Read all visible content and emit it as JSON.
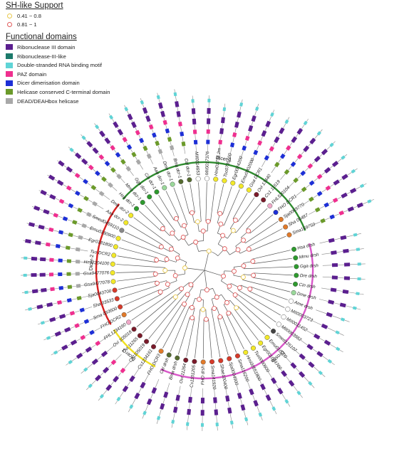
{
  "legend": {
    "support_title": "SH-like Support",
    "support": [
      {
        "label": "0.41 ~ 0.8",
        "color": "#e8c84a"
      },
      {
        "label": "0.81 ~ 1",
        "color": "#e05a5a"
      }
    ],
    "domains_title": "Functional domains",
    "domains": [
      {
        "label": "Ribonuclease III domain",
        "color": "#5b1f8f",
        "key": "R3"
      },
      {
        "label": "Ribonuclease-III-like",
        "color": "#1c7a6b",
        "key": "R3L"
      },
      {
        "label": "Double-stranded RNA binding motif",
        "color": "#5fd4d6",
        "key": "DS"
      },
      {
        "label": "PAZ domain",
        "color": "#ef2f8f",
        "key": "PAZ"
      },
      {
        "label": "Dicer dimerisation domain",
        "color": "#1d2fd6",
        "key": "DD"
      },
      {
        "label": "Helicase conserved C-terminal domain",
        "color": "#6b9a2a",
        "key": "HC"
      },
      {
        "label": "DEAD/DEAHbox helicase",
        "color": "#a8a8a8",
        "key": "DEAD"
      }
    ]
  },
  "clades": [
    {
      "label": "Dicer-1",
      "color": "#2e8b2e"
    },
    {
      "label": "Dicer-2",
      "color": "#d62020"
    },
    {
      "label": "Dicer-3",
      "color": "#f0e020"
    },
    {
      "label": "Drosha",
      "color": "#d857c8"
    }
  ],
  "leaves": [
    {
      "name": "Hsa drsh",
      "color": "#2e9a2e",
      "arch": "DS R3 R3"
    },
    {
      "name": "Mmu drsh",
      "color": "#2e9a2e",
      "arch": "DS R3 R3"
    },
    {
      "name": "Gga drsh",
      "color": "#2e9a2e",
      "arch": "DS R3 R3"
    },
    {
      "name": "Dre drsh",
      "color": "#2e9a2e",
      "arch": "DS R3 R3"
    },
    {
      "name": "Cin drsh",
      "color": "#2e9a2e",
      "arch": "DS R3 R3"
    },
    {
      "name": "Dme drsh",
      "color": "#9ad89a",
      "arch": "DS R3 R3"
    },
    {
      "name": "Ame drsh",
      "color": "#ffffff",
      "arch": "DS R3"
    },
    {
      "name": "MII0003723",
      "color": "#ffffff",
      "arch": "DS R3"
    },
    {
      "name": "MII0011452",
      "color": "#ffffff",
      "arch": "DS R3 R3"
    },
    {
      "name": "MII0003982",
      "color": "#ffffff",
      "arch": "DS R3 R3"
    },
    {
      "name": "Smed125107",
      "color": "#444444",
      "arch": "DS R3 R3"
    },
    {
      "name": "Emu010700",
      "color": "#f2e82a",
      "arch": "DS R3 R3"
    },
    {
      "name": "Egr001084700",
      "color": "#f2e82a",
      "arch": "DS R3 R3"
    },
    {
      "name": "Tso0000600",
      "color": "#f2e82a",
      "arch": "DS R3 R3"
    },
    {
      "name": "Hmi00551800",
      "color": "#f2e82a",
      "arch": "DS R3 R3"
    },
    {
      "name": "Sma116200",
      "color": "#d63a2a",
      "arch": "DS R3 R3"
    },
    {
      "name": "Sja0004900",
      "color": "#d63a2a",
      "arch": "DS R3 R3"
    },
    {
      "name": "Shae100400",
      "color": "#d63a2a",
      "arch": "DS R3 R3"
    },
    {
      "name": "Sma141920",
      "color": "#d63a2a",
      "arch": "DS R3 R3"
    },
    {
      "name": "FHO drsh",
      "color": "#e07a2a",
      "arch": "DS R3 R3"
    },
    {
      "name": "Cs1101205",
      "color": "#7a1a2a",
      "arch": "DS R3 R3"
    },
    {
      "name": "Ovi 11264",
      "color": "#7a1a2a",
      "arch": "DS R3 R3"
    },
    {
      "name": "Bma drsh",
      "color": "#556b2f",
      "arch": "DS R3 R3"
    },
    {
      "name": "Cel drsh",
      "color": "#556b2f",
      "arch": "DS R3 R3"
    },
    {
      "name": "FHO DCR3",
      "color": "#e07a2a",
      "arch": "DS R3 R3"
    },
    {
      "name": "Cs1234161",
      "color": "#7a1a2a",
      "arch": "DS R3 R3"
    },
    {
      "name": "Cs1105019",
      "color": "#7a1a2a",
      "arch": "DS R3 R3 PAZ"
    },
    {
      "name": "Ovi 11265",
      "color": "#7a1a2a",
      "arch": "DS R3 R3 PAZ"
    },
    {
      "name": "Ovi 105018",
      "color": "#7a1a2a",
      "arch": "DS R3 R3"
    },
    {
      "name": "FHL1234160",
      "color": "#f0a8c8",
      "arch": "DS R3 R3 PAZ"
    },
    {
      "name": "FHO DCR2",
      "color": "#e07a2a",
      "arch": "DS R3 R3 PAZ DD"
    },
    {
      "name": "Sma 033600",
      "color": "#d63a2a",
      "arch": "DS R3 R3 PAZ DD"
    },
    {
      "name": "Sha 03533",
      "color": "#d63a2a",
      "arch": "DS R3 R3 PAZ DD"
    },
    {
      "name": "Sja0043700",
      "color": "#d63a2a",
      "arch": "DS R3 R3 PAZ DD HC"
    },
    {
      "name": "Gsa9477078",
      "color": "#f2e82a",
      "arch": "DS R3 R3 PAZ DD HC DEAD"
    },
    {
      "name": "Gsa9477076",
      "color": "#f2e82a",
      "arch": "DS R3 R3 PAZ DD HC DEAD"
    },
    {
      "name": "Hmi2204100",
      "color": "#f2e82a",
      "arch": "DS R3 R3 PAZ DD HC DEAD"
    },
    {
      "name": "Tso DCR2",
      "color": "#f2e82a",
      "arch": "R3 R3 PAZ DD HC DEAD"
    },
    {
      "name": "Egr0181800",
      "color": "#f2e82a",
      "arch": "R3 R3 PAZ DD HC DEAD"
    },
    {
      "name": "Emu0180900",
      "color": "#f2e82a",
      "arch": "R3 R3 PAZ DD HC DEAD"
    },
    {
      "name": "Smed0459110",
      "color": "#888888",
      "arch": "R3 R3 PAZ DD HC DEAD"
    },
    {
      "name": "Aae dcr-2",
      "color": "#f2e82a",
      "arch": "R3 R3 PAZ DD HC DEAD"
    },
    {
      "name": "Dme dcr-2",
      "color": "#f2e82a",
      "arch": "R3 R3 PAZ DD HC DEAD"
    },
    {
      "name": "Hsa dcr-1",
      "color": "#2e9a2e",
      "arch": "DS R3 R3 PAZ DD HC DEAD"
    },
    {
      "name": "Mmu dcr-1",
      "color": "#2e9a2e",
      "arch": "DS R3 R3 PAZ DD HC DEAD"
    },
    {
      "name": "Gga dcr-1",
      "color": "#2e9a2e",
      "arch": "DS R3 R3 PAZ DD HC DEAD"
    },
    {
      "name": "Cin dcr-1",
      "color": "#2e9a2e",
      "arch": "DS R3 R3 PAZ DD HC DEAD"
    },
    {
      "name": "Aae dcr-1",
      "color": "#9ad89a",
      "arch": "DS R3 R3 PAZ DD HC DEAD"
    },
    {
      "name": "Dme dcr-1",
      "color": "#9ad89a",
      "arch": "DS R3 R3 PAZ DD HC DEAD"
    },
    {
      "name": "Bma dcr-1",
      "color": "#556b2f",
      "arch": "DS R3 R3 PAZ DD HC DEAD"
    },
    {
      "name": "Cel dcr-1",
      "color": "#556b2f",
      "arch": "DS R3 R3 PAZ DD HC"
    },
    {
      "name": "MII0014653",
      "color": "#ffffff",
      "arch": "DS R3 R3 PAZ DD"
    },
    {
      "name": "MII0017376",
      "color": "#ffffff",
      "arch": "DS R3 R3 PAZ DD"
    },
    {
      "name": "Hmi01736.2m",
      "color": "#f2e82a",
      "arch": "DS R3 R3 PAZ"
    },
    {
      "name": "Tso0735600",
      "color": "#f2e82a",
      "arch": "DS R3 R3 PAZ DD"
    },
    {
      "name": "Egr0024200",
      "color": "#f2e82a",
      "arch": "DS R3 R3 PAZ DD"
    },
    {
      "name": "Emu0002000",
      "color": "#f2e82a",
      "arch": "DS R3 R3 PAZ DD"
    },
    {
      "name": "Gsa DCR1",
      "color": "#f2e82a",
      "arch": "DS R3 R3 PAZ DD"
    },
    {
      "name": "Ovi 13440",
      "color": "#7a1a2a",
      "arch": "DS R3 R3 PAZ DD HC"
    },
    {
      "name": "Cs1 11519",
      "color": "#7a1a2a",
      "arch": "DS R3 R3 PAZ DD HC"
    },
    {
      "name": "FHL520104",
      "color": "#f0a8c8",
      "arch": "DS R3 R3 PAZ DD HC"
    },
    {
      "name": "FHO DCR1",
      "color": "#1d2fd6",
      "arch": "DS R3 R3 PAZ DD HC"
    },
    {
      "name": "Sja0069770",
      "color": "#e07a2a",
      "arch": "DS R3 R3 PAZ DD HC"
    },
    {
      "name": "Sha 06487",
      "color": "#e07a2a",
      "arch": "DS R3 R3 PAZ DD HC"
    },
    {
      "name": "Sma169750",
      "color": "#e07a2a",
      "arch": "DS R3 R3 PAZ DD HC"
    }
  ]
}
